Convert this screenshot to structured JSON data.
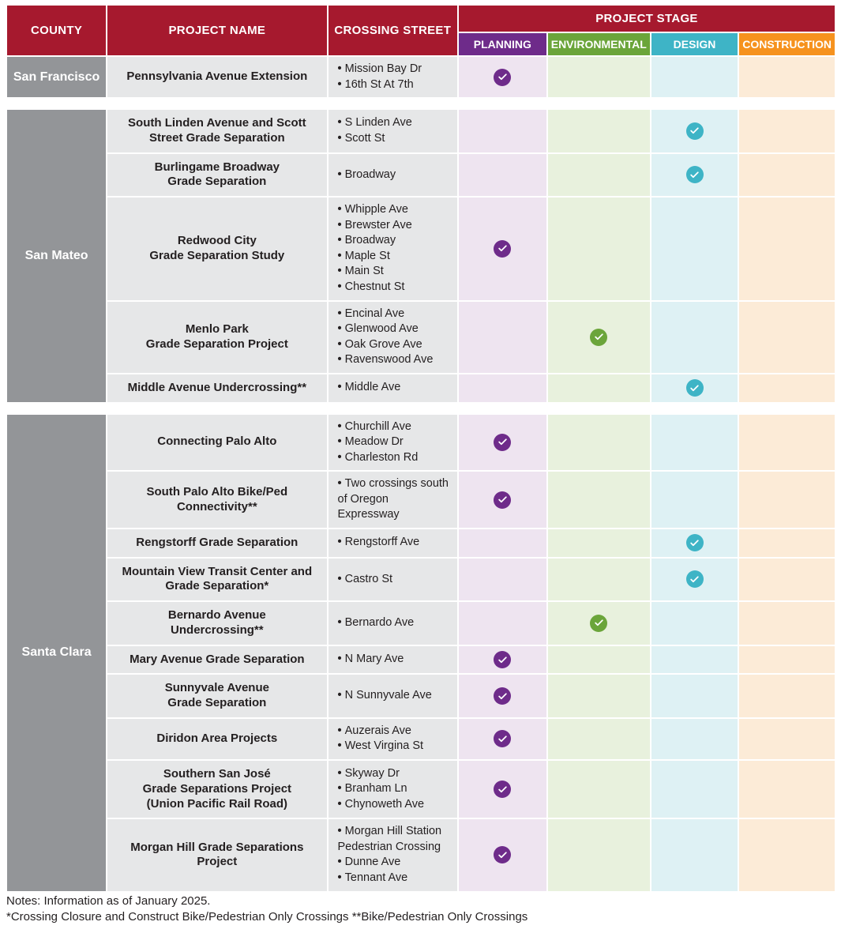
{
  "headers": {
    "county": "COUNTY",
    "project_name": "PROJECT NAME",
    "crossing_street": "CROSSING STREET",
    "project_stage": "PROJECT STAGE",
    "planning": "PLANNING",
    "environmental": "ENVIRONMENTAL",
    "design": "DESIGN",
    "construction": "CONSTRUCTION"
  },
  "column_widths": {
    "county": 130,
    "project": 290,
    "crossing": 170,
    "stage": 115
  },
  "colors": {
    "header_red": "#a6192e",
    "county_gray": "#939598",
    "cell_gray": "#e6e7e8",
    "planning": "#6e2b8a",
    "environmental": "#6ba53a",
    "design": "#3eb4c6",
    "construction": "#f6921e",
    "planning_bg": "#eee4f0",
    "environmental_bg": "#e8f1dd",
    "design_bg": "#def1f4",
    "construction_bg": "#fcebd7"
  },
  "groups": [
    {
      "county": "San Francisco",
      "projects": [
        {
          "name": "Pennsylvania Avenue Extension",
          "streets": [
            "Mission Bay Dr",
            "16th St At 7th"
          ],
          "stage": "planning"
        }
      ]
    },
    {
      "county": "San Mateo",
      "projects": [
        {
          "name": "South Linden Avenue and Scott Street Grade Separation",
          "streets": [
            "S Linden Ave",
            "Scott St"
          ],
          "stage": "design"
        },
        {
          "name": "Burlingame Broadway Grade Separation",
          "name_lines": [
            "Burlingame Broadway",
            "Grade Separation"
          ],
          "streets": [
            "Broadway"
          ],
          "stage": "design"
        },
        {
          "name": "Redwood City Grade Separation Study",
          "name_lines": [
            "Redwood City",
            "Grade Separation Study"
          ],
          "streets": [
            "Whipple Ave",
            "Brewster Ave",
            "Broadway",
            "Maple St",
            "Main St",
            "Chestnut St"
          ],
          "stage": "planning"
        },
        {
          "name": "Menlo Park Grade Separation Project",
          "name_lines": [
            "Menlo Park",
            "Grade Separation Project"
          ],
          "streets": [
            "Encinal Ave",
            "Glenwood Ave",
            "Oak Grove Ave",
            "Ravenswood Ave"
          ],
          "stage": "environmental"
        },
        {
          "name": "Middle Avenue Undercrossing**",
          "streets": [
            "Middle Ave"
          ],
          "stage": "design"
        }
      ]
    },
    {
      "county": "Santa Clara",
      "projects": [
        {
          "name": "Connecting Palo Alto",
          "streets": [
            "Churchill Ave",
            "Meadow Dr",
            "Charleston Rd"
          ],
          "stage": "planning"
        },
        {
          "name": "South Palo Alto Bike/Ped Connectivity**",
          "streets": [
            "Two crossings south of Oregon Expressway"
          ],
          "stage": "planning"
        },
        {
          "name": "Rengstorff Grade Separation",
          "streets": [
            "Rengstorff Ave"
          ],
          "stage": "design"
        },
        {
          "name": "Mountain View Transit Center and Grade Separation*",
          "streets": [
            "Castro St"
          ],
          "stage": "design"
        },
        {
          "name": "Bernardo Avenue Undercrossing**",
          "name_lines": [
            "Bernardo Avenue",
            "Undercrossing**"
          ],
          "streets": [
            "Bernardo Ave"
          ],
          "stage": "environmental"
        },
        {
          "name": "Mary Avenue Grade Separation",
          "streets": [
            "N Mary Ave"
          ],
          "stage": "planning"
        },
        {
          "name": "Sunnyvale Avenue Grade Separation",
          "name_lines": [
            "Sunnyvale Avenue",
            "Grade Separation"
          ],
          "streets": [
            "N Sunnyvale Ave"
          ],
          "stage": "planning"
        },
        {
          "name": "Diridon Area Projects",
          "streets": [
            "Auzerais Ave",
            "West Virgina St"
          ],
          "stage": "planning"
        },
        {
          "name": "Southern San José Grade Separations Project (Union Pacific Rail Road)",
          "name_lines": [
            "Southern San José",
            "Grade Separations Project",
            "(Union Pacific Rail Road)"
          ],
          "streets": [
            "Skyway Dr",
            "Branham Ln",
            "Chynoweth Ave"
          ],
          "stage": "planning"
        },
        {
          "name": "Morgan Hill Grade Separations Project",
          "streets": [
            "Morgan Hill Station Pedestrian Crossing",
            "Dunne Ave",
            "Tennant Ave"
          ],
          "stage": "planning"
        }
      ]
    }
  ],
  "notes": {
    "line1": "Notes: Information as of January 2025.",
    "line2": "*Crossing Closure and Construct Bike/Pedestrian Only Crossings  **Bike/Pedestrian Only Crossings"
  }
}
